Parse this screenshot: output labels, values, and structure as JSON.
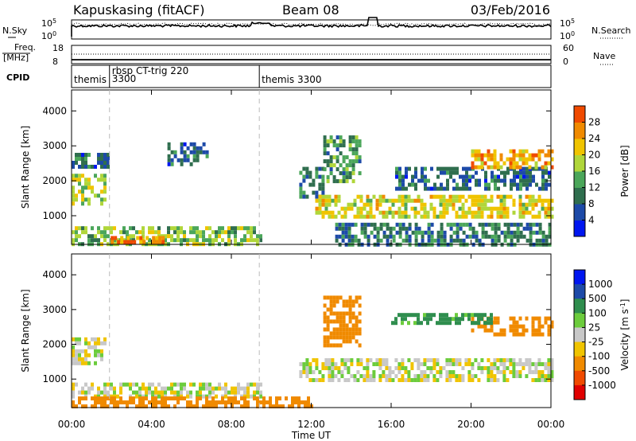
{
  "header": {
    "station": "Kapuskasing (fitACF)",
    "beam": "Beam 08",
    "date": "03/Feb/2016"
  },
  "top_panel": {
    "left_label": "N.Sky",
    "right_label": "N.Search",
    "tick_top": "10^5",
    "tick_bottom": "10^0"
  },
  "freq_panel": {
    "left_label_1": "Freq.",
    "left_label_2": "[MHz]",
    "right_label": "Nave",
    "left_ticks": [
      "18",
      "8"
    ],
    "right_ticks": [
      "60",
      "0"
    ]
  },
  "cpid_panel": {
    "label": "CPID",
    "segments": [
      {
        "start_hour": 0,
        "lines": [
          "themis"
        ]
      },
      {
        "start_hour": 1.9,
        "lines": [
          "rbsp_CT-trig_220",
          "3300"
        ]
      },
      {
        "start_hour": 9.4,
        "lines": [
          "themis 3300"
        ]
      }
    ]
  },
  "x_axis": {
    "label": "Time UT",
    "tick_labels": [
      "00:00",
      "04:00",
      "08:00",
      "12:00",
      "16:00",
      "20:00",
      "00:00"
    ],
    "range_hours": [
      0,
      24
    ]
  },
  "colors": {
    "power_scale": [
      "#0016f0",
      "#1d4aa8",
      "#2f6e4e",
      "#4ba65a",
      "#b0d63a",
      "#f0c400",
      "#f08a00",
      "#f04a00",
      "#e00000"
    ],
    "velocity_scale": [
      "#e00000",
      "#f04a00",
      "#f08a00",
      "#f0c400",
      "#c8c8c8",
      "#c8c8c8",
      "#6ccc3c",
      "#2f8e4e",
      "#1d4aa8",
      "#0016f0"
    ],
    "ground_scatter": "#c8c8c8"
  },
  "chart_data": [
    {
      "type": "heatmap",
      "title": "Power",
      "xlabel": "Time UT",
      "ylabel": "Slant Range [km]",
      "xlim": [
        0,
        24
      ],
      "ylim": [
        180,
        4600
      ],
      "y_ticks": [
        "1000",
        "2000",
        "3000",
        "4000"
      ],
      "colorbar": {
        "label": "Power [dB]",
        "ticks": [
          "4",
          "8",
          "12",
          "16",
          "20",
          "24",
          "28"
        ],
        "range": [
          0,
          32
        ]
      },
      "echo_regions": [
        {
          "t": [
            0.0,
            1.6
          ],
          "r": [
            1400,
            2200
          ],
          "value": 18
        },
        {
          "t": [
            0.0,
            1.8
          ],
          "r": [
            2400,
            2800
          ],
          "value": 8
        },
        {
          "t": [
            0.0,
            9.5
          ],
          "r": [
            200,
            700
          ],
          "value": 16
        },
        {
          "t": [
            1.8,
            4.6
          ],
          "r": [
            220,
            420
          ],
          "value": 28
        },
        {
          "t": [
            4.8,
            6.8
          ],
          "r": [
            2500,
            3100
          ],
          "value": 8
        },
        {
          "t": [
            11.4,
            12.6
          ],
          "r": [
            1500,
            2400
          ],
          "value": 10
        },
        {
          "t": [
            12.2,
            24.0
          ],
          "r": [
            950,
            1600
          ],
          "value": 20
        },
        {
          "t": [
            12.6,
            14.4
          ],
          "r": [
            2000,
            3300
          ],
          "value": 12
        },
        {
          "t": [
            16.2,
            24.0
          ],
          "r": [
            1800,
            2400
          ],
          "value": 8
        },
        {
          "t": [
            20.0,
            24.0
          ],
          "r": [
            2400,
            2900
          ],
          "value": 24
        },
        {
          "t": [
            13.2,
            24.0
          ],
          "r": [
            200,
            800
          ],
          "value": 10
        }
      ]
    },
    {
      "type": "heatmap",
      "title": "Velocity",
      "xlabel": "Time UT",
      "ylabel": "Slant Range [km]",
      "xlim": [
        0,
        24
      ],
      "ylim": [
        180,
        4600
      ],
      "y_ticks": [
        "1000",
        "2000",
        "3000",
        "4000"
      ],
      "colorbar": {
        "label": "Velocity [m s^-1]",
        "ticks": [
          "1000",
          "500",
          "100",
          "25",
          "-25",
          "-100",
          "-500",
          "-1000"
        ]
      },
      "echo_regions": [
        {
          "t": [
            0.0,
            1.6
          ],
          "r": [
            1400,
            2200
          ],
          "value": 0
        },
        {
          "t": [
            0.0,
            9.5
          ],
          "r": [
            500,
            900
          ],
          "value": 0
        },
        {
          "t": [
            0.0,
            12.0
          ],
          "r": [
            200,
            500
          ],
          "value": -200
        },
        {
          "t": [
            11.4,
            24.0
          ],
          "r": [
            1000,
            1600
          ],
          "value": 0
        },
        {
          "t": [
            12.6,
            14.4
          ],
          "r": [
            2000,
            3400
          ],
          "value": -300
        },
        {
          "t": [
            20.0,
            24.0
          ],
          "r": [
            2300,
            2800
          ],
          "value": -400
        },
        {
          "t": [
            16.0,
            21.0
          ],
          "r": [
            2600,
            2900
          ],
          "value": 150
        }
      ]
    }
  ]
}
